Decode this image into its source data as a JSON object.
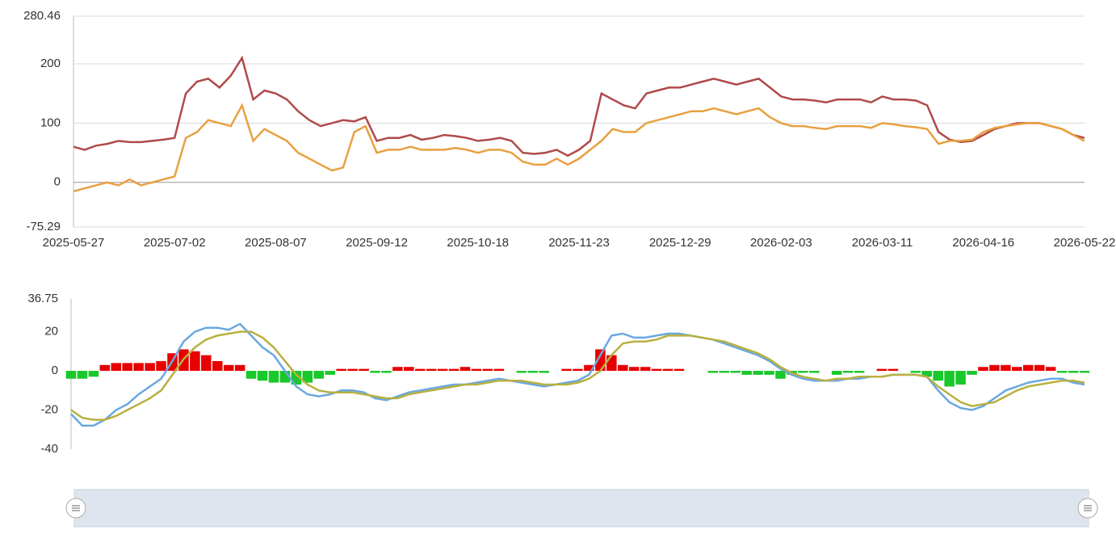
{
  "chart_data": [
    {
      "type": "line",
      "categories": [
        "2025-05-27",
        null,
        null,
        null,
        null,
        null,
        null,
        null,
        null,
        "2025-07-02",
        null,
        null,
        null,
        null,
        null,
        null,
        null,
        null,
        "2025-08-07",
        null,
        null,
        null,
        null,
        null,
        null,
        null,
        null,
        "2025-09-12",
        null,
        null,
        null,
        null,
        null,
        null,
        null,
        null,
        "2025-10-18",
        null,
        null,
        null,
        null,
        null,
        null,
        null,
        null,
        "2025-11-23",
        null,
        null,
        null,
        null,
        null,
        null,
        null,
        null,
        "2025-12-29",
        null,
        null,
        null,
        null,
        null,
        null,
        null,
        null,
        "2026-02-03",
        null,
        null,
        null,
        null,
        null,
        null,
        null,
        null,
        "2026-03-11",
        null,
        null,
        null,
        null,
        null,
        null,
        null,
        null,
        "2026-04-16",
        null,
        null,
        null,
        null,
        null,
        null,
        null,
        null,
        "2026-05-22"
      ],
      "ylim": [
        -75.29,
        280.46
      ],
      "yticks": [
        -75.29,
        0,
        100,
        200,
        280.46
      ],
      "grid": true,
      "series": [
        {
          "color": "#b04a4a",
          "values": [
            60,
            55,
            62,
            65,
            70,
            68,
            68,
            70,
            72,
            75,
            150,
            170,
            175,
            160,
            180,
            210,
            140,
            155,
            150,
            140,
            120,
            105,
            95,
            100,
            105,
            103,
            110,
            70,
            75,
            75,
            80,
            72,
            75,
            80,
            78,
            75,
            70,
            72,
            75,
            70,
            50,
            48,
            50,
            55,
            45,
            55,
            70,
            150,
            140,
            130,
            125,
            150,
            155,
            160,
            160,
            165,
            170,
            175,
            170,
            165,
            170,
            175,
            160,
            145,
            140,
            140,
            138,
            135,
            140,
            140,
            140,
            135,
            145,
            140,
            140,
            138,
            130,
            85,
            72,
            68,
            70,
            80,
            90,
            95,
            100,
            100,
            100,
            95,
            90,
            80,
            75
          ]
        },
        {
          "color": "#e8a040",
          "values": [
            -15,
            -10,
            -5,
            0,
            -5,
            5,
            -5,
            0,
            5,
            10,
            75,
            85,
            105,
            100,
            95,
            130,
            70,
            90,
            80,
            70,
            50,
            40,
            30,
            20,
            25,
            85,
            95,
            50,
            55,
            55,
            60,
            55,
            55,
            55,
            58,
            55,
            50,
            55,
            55,
            50,
            35,
            30,
            30,
            40,
            30,
            40,
            55,
            70,
            90,
            85,
            85,
            100,
            105,
            110,
            115,
            120,
            120,
            125,
            120,
            115,
            120,
            125,
            110,
            100,
            95,
            95,
            92,
            90,
            95,
            95,
            95,
            92,
            100,
            98,
            95,
            93,
            90,
            65,
            70,
            70,
            72,
            85,
            92,
            95,
            98,
            100,
            100,
            95,
            90,
            80,
            70
          ]
        }
      ]
    },
    {
      "type": "combo",
      "ylim": [
        -40,
        36.75
      ],
      "yticks": [
        -40,
        -20,
        0,
        20,
        36.75
      ],
      "grid": false,
      "series": [
        {
          "type": "bar",
          "color": "#e80000",
          "negative_color": "#19c82a",
          "values": [
            -4,
            -4,
            -3,
            3,
            4,
            4,
            4,
            4,
            5,
            9,
            11,
            10,
            8,
            5,
            3,
            3,
            -4,
            -5,
            -6,
            -6,
            -7,
            -6,
            -4,
            -2,
            1,
            1,
            1,
            -1,
            -1,
            2,
            2,
            1,
            1,
            1,
            1,
            2,
            1,
            1,
            1,
            0,
            -1,
            -1,
            -1,
            0,
            1,
            1,
            3,
            11,
            8,
            3,
            2,
            2,
            1,
            1,
            1,
            0,
            0,
            -1,
            -1,
            -1,
            -2,
            -2,
            -2,
            -4,
            -2,
            -1,
            -1,
            0,
            -2,
            -1,
            -1,
            0,
            1,
            1,
            0,
            -1,
            -3,
            -5,
            -8,
            -7,
            -2,
            2,
            3,
            3,
            2,
            3,
            3,
            2,
            -1,
            -1,
            -1
          ]
        },
        {
          "type": "line",
          "color": "#6aa8e0",
          "values": [
            -22,
            -28,
            -28,
            -25,
            -20,
            -17,
            -12,
            -8,
            -4,
            5,
            15,
            20,
            22,
            22,
            21,
            24,
            18,
            12,
            8,
            0,
            -8,
            -12,
            -13,
            -12,
            -10,
            -10,
            -11,
            -14,
            -15,
            -13,
            -11,
            -10,
            -9,
            -8,
            -7,
            -7,
            -6,
            -5,
            -4,
            -5,
            -6,
            -7,
            -8,
            -7,
            -6,
            -5,
            -2,
            8,
            18,
            19,
            17,
            17,
            18,
            19,
            19,
            18,
            17,
            16,
            14,
            12,
            10,
            8,
            5,
            1,
            -2,
            -4,
            -5,
            -5,
            -5,
            -4,
            -4,
            -3,
            -3,
            -2,
            -2,
            -2,
            -3,
            -10,
            -16,
            -19,
            -20,
            -18,
            -14,
            -10,
            -8,
            -6,
            -5,
            -4,
            -4,
            -6,
            -7
          ]
        },
        {
          "type": "line",
          "color": "#b8b040",
          "values": [
            -20,
            -24,
            -25,
            -25,
            -23,
            -20,
            -17,
            -14,
            -10,
            -2,
            6,
            12,
            16,
            18,
            19,
            20,
            20,
            17,
            12,
            5,
            -2,
            -7,
            -10,
            -11,
            -11,
            -11,
            -12,
            -13,
            -14,
            -14,
            -12,
            -11,
            -10,
            -9,
            -8,
            -7,
            -7,
            -6,
            -5,
            -5,
            -5,
            -6,
            -7,
            -7,
            -7,
            -6,
            -4,
            0,
            8,
            14,
            15,
            15,
            16,
            18,
            18,
            18,
            17,
            16,
            15,
            13,
            11,
            9,
            6,
            2,
            -1,
            -3,
            -4,
            -5,
            -4,
            -4,
            -3,
            -3,
            -3,
            -2,
            -2,
            -2,
            -3,
            -8,
            -12,
            -16,
            -18,
            -17,
            -16,
            -13,
            -10,
            -8,
            -7,
            -6,
            -5,
            -5,
            -6
          ]
        }
      ]
    }
  ]
}
